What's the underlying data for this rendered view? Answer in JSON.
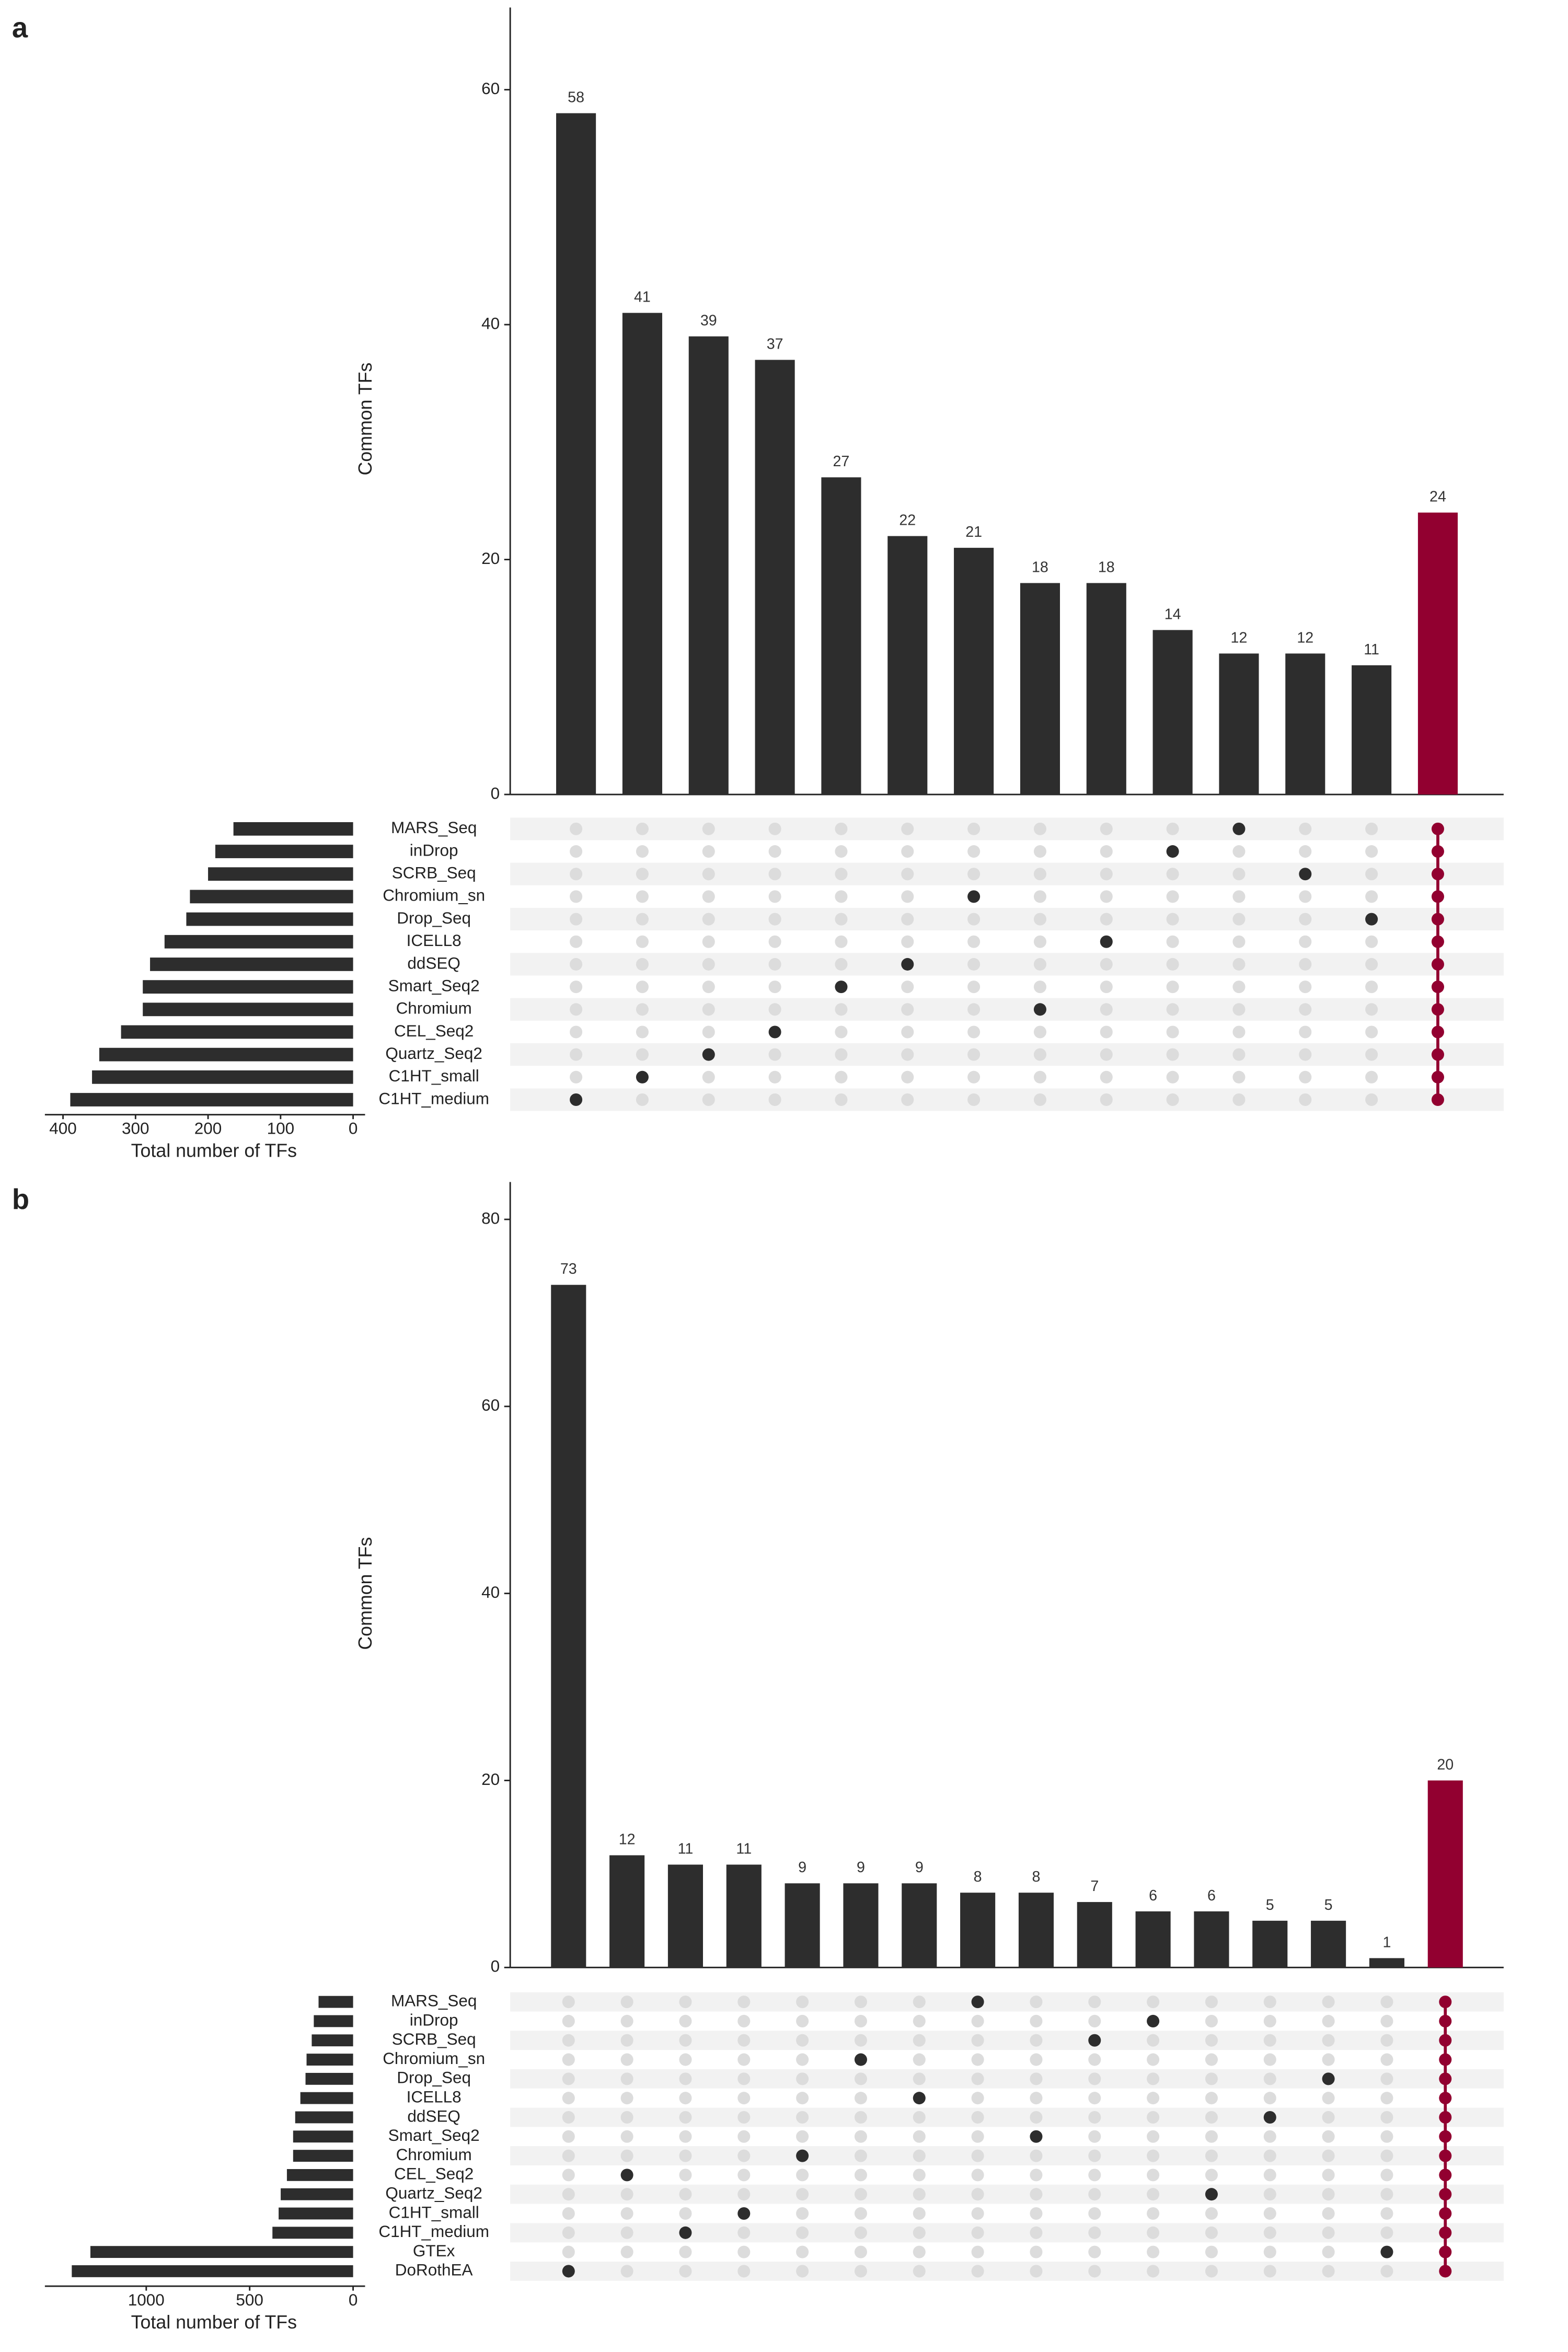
{
  "chart_data": [
    {
      "type": "upset",
      "panel": "a",
      "ylabel": "Common TFs",
      "ylim": [
        0,
        67
      ],
      "yticks": [
        0,
        20,
        40,
        60
      ],
      "values": [
        58,
        41,
        39,
        37,
        27,
        22,
        21,
        18,
        18,
        14,
        12,
        12,
        11,
        24
      ],
      "intersections": [
        [
          12
        ],
        [
          11
        ],
        [
          10
        ],
        [
          9
        ],
        [
          7
        ],
        [
          6
        ],
        [
          3
        ],
        [
          8
        ],
        [
          5
        ],
        [
          1
        ],
        [
          0
        ],
        [
          2
        ],
        [
          4
        ],
        [
          0,
          1,
          2,
          3,
          4,
          5,
          6,
          7,
          8,
          9,
          10,
          11,
          12
        ]
      ],
      "bar_colors": [
        "#2d2d2d",
        "#2d2d2d",
        "#2d2d2d",
        "#2d2d2d",
        "#2d2d2d",
        "#2d2d2d",
        "#2d2d2d",
        "#2d2d2d",
        "#2d2d2d",
        "#2d2d2d",
        "#2d2d2d",
        "#2d2d2d",
        "#2d2d2d",
        "#920030"
      ],
      "sets": [
        "MARS_Seq",
        "inDrop",
        "SCRB_Seq",
        "Chromium_sn",
        "Drop_Seq",
        "ICELL8",
        "ddSEQ",
        "Smart_Seq2",
        "Chromium",
        "CEL_Seq2",
        "Quartz_Seq2",
        "C1HT_small",
        "C1HT_medium"
      ],
      "set_sizes": [
        165,
        190,
        200,
        225,
        230,
        260,
        280,
        290,
        290,
        320,
        350,
        360,
        390
      ],
      "set_xlabel": "Total number of TFs",
      "set_xlim": [
        0,
        425
      ],
      "set_xticks": [
        0,
        100,
        200,
        300,
        400
      ]
    },
    {
      "type": "upset",
      "panel": "b",
      "ylabel": "Common TFs",
      "ylim": [
        0,
        84
      ],
      "yticks": [
        0,
        20,
        40,
        60,
        80
      ],
      "values": [
        73,
        12,
        11,
        11,
        9,
        9,
        9,
        8,
        8,
        7,
        6,
        6,
        5,
        5,
        1,
        20
      ],
      "intersections": [
        [
          14
        ],
        [
          9
        ],
        [
          12
        ],
        [
          11
        ],
        [
          8
        ],
        [
          3
        ],
        [
          5
        ],
        [
          0
        ],
        [
          7
        ],
        [
          2
        ],
        [
          1
        ],
        [
          10
        ],
        [
          6
        ],
        [
          4
        ],
        [
          13
        ],
        [
          0,
          1,
          2,
          3,
          4,
          5,
          6,
          7,
          8,
          9,
          10,
          11,
          12,
          13,
          14
        ]
      ],
      "bar_colors": [
        "#2d2d2d",
        "#2d2d2d",
        "#2d2d2d",
        "#2d2d2d",
        "#2d2d2d",
        "#2d2d2d",
        "#2d2d2d",
        "#2d2d2d",
        "#2d2d2d",
        "#2d2d2d",
        "#2d2d2d",
        "#2d2d2d",
        "#2d2d2d",
        "#2d2d2d",
        "#2d2d2d",
        "#920030"
      ],
      "sets": [
        "MARS_Seq",
        "inDrop",
        "SCRB_Seq",
        "Chromium_sn",
        "Drop_Seq",
        "ICELL8",
        "ddSEQ",
        "Smart_Seq2",
        "Chromium",
        "CEL_Seq2",
        "Quartz_Seq2",
        "C1HT_small",
        "C1HT_medium",
        "GTEx",
        "DoRothEA"
      ],
      "set_sizes": [
        167,
        190,
        200,
        225,
        230,
        255,
        280,
        290,
        290,
        320,
        350,
        360,
        390,
        1270,
        1360
      ],
      "set_xlabel": "Total number of TFs",
      "set_xlim": [
        0,
        1490
      ],
      "set_xticks": [
        0,
        500,
        1000
      ]
    }
  ]
}
